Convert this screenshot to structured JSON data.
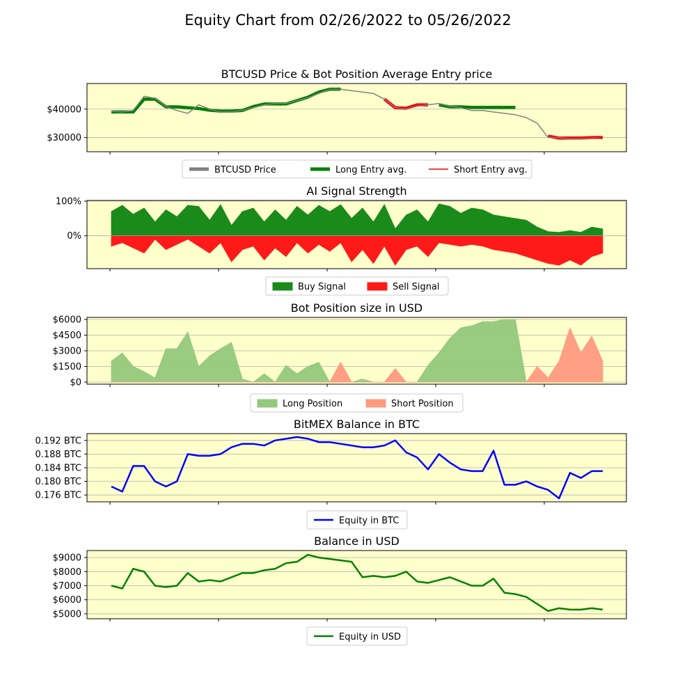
{
  "figure": {
    "title": "Equity Chart from 02/26/2022 to 05/26/2022"
  },
  "chart_data": [
    {
      "type": "line",
      "title": "BTCUSD Price & Bot Position Average Entry price",
      "ylim": [
        25000,
        49000
      ],
      "yticks": [
        30000,
        40000
      ],
      "ytick_labels": [
        "$30000",
        "$40000"
      ],
      "grid": "horizontal",
      "legend_placement": "bottom-center",
      "x": [
        0,
        2,
        4,
        6,
        8,
        10,
        12,
        14,
        16,
        18,
        20,
        22,
        24,
        26,
        28,
        30,
        32,
        34,
        36,
        38,
        40,
        42,
        44,
        46,
        48,
        50,
        52,
        54,
        56,
        58,
        60,
        62,
        64,
        66,
        68,
        70,
        72,
        74,
        76,
        78,
        80,
        82,
        84,
        86,
        88,
        90
      ],
      "series": [
        {
          "name": "BTCUSD Price",
          "color": "#808080",
          "values": [
            39200,
            39000,
            39500,
            44500,
            43800,
            41000,
            39500,
            38500,
            41500,
            40000,
            39000,
            39000,
            39500,
            40500,
            41500,
            42000,
            42000,
            43000,
            44000,
            45500,
            47000,
            47000,
            46500,
            46000,
            45500,
            43500,
            40500,
            40000,
            41000,
            41500,
            42000,
            41000,
            40500,
            39500,
            39500,
            39000,
            38500,
            38000,
            37000,
            35000,
            30000,
            30000,
            29500,
            29500,
            29800,
            29500
          ]
        },
        {
          "name": "Long Entry avg.",
          "color": "#008000",
          "values": [
            39000,
            39000,
            39000,
            43500,
            43500,
            40800,
            40800,
            40500,
            40200,
            39600,
            39300,
            39300,
            39500,
            40900,
            41800,
            41800,
            41800,
            43000,
            44200,
            46000,
            47000,
            47000,
            null,
            null,
            null,
            null,
            null,
            null,
            null,
            null,
            41500,
            40800,
            40800,
            40600,
            40600,
            40600,
            40600,
            40600,
            null,
            null,
            null,
            null,
            null,
            null,
            null,
            null
          ]
        },
        {
          "name": "Short Entry avg.",
          "color": "#ff0000",
          "values": [
            null,
            null,
            null,
            null,
            null,
            null,
            null,
            null,
            null,
            null,
            null,
            null,
            null,
            null,
            null,
            null,
            null,
            null,
            null,
            null,
            null,
            null,
            null,
            null,
            null,
            43500,
            40500,
            40300,
            41500,
            41500,
            null,
            null,
            null,
            null,
            null,
            null,
            null,
            null,
            null,
            null,
            30500,
            29800,
            29800,
            29800,
            30000,
            30000
          ]
        }
      ]
    },
    {
      "type": "area",
      "title": "AI Signal Strength",
      "ylim": [
        -95,
        102
      ],
      "yticks": [
        0,
        100
      ],
      "ytick_labels": [
        "0%",
        "100%"
      ],
      "grid": "horizontal",
      "legend_placement": "bottom-center",
      "x": [
        0,
        2,
        4,
        6,
        8,
        10,
        12,
        14,
        16,
        18,
        20,
        22,
        24,
        26,
        28,
        30,
        32,
        34,
        36,
        38,
        40,
        42,
        44,
        46,
        48,
        50,
        52,
        54,
        56,
        58,
        60,
        62,
        64,
        66,
        68,
        70,
        72,
        74,
        76,
        78,
        80,
        82,
        84,
        86,
        88,
        90
      ],
      "series": [
        {
          "name": "Buy Signal",
          "color": "#1a8a1a",
          "values": [
            70,
            88,
            62,
            80,
            40,
            75,
            55,
            88,
            85,
            45,
            90,
            30,
            70,
            80,
            40,
            75,
            45,
            85,
            60,
            88,
            70,
            90,
            50,
            80,
            40,
            90,
            20,
            60,
            75,
            40,
            92,
            85,
            65,
            80,
            75,
            60,
            55,
            50,
            45,
            25,
            12,
            10,
            15,
            10,
            25,
            20
          ]
        },
        {
          "name": "Sell Signal",
          "color": "#ff1a1a",
          "values": [
            -30,
            -20,
            -35,
            -50,
            -10,
            -40,
            -25,
            -10,
            -30,
            -50,
            -20,
            -75,
            -40,
            -30,
            -70,
            -35,
            -60,
            -20,
            -50,
            -25,
            -45,
            -20,
            -75,
            -40,
            -80,
            -30,
            -85,
            -40,
            -30,
            -60,
            -20,
            -25,
            -30,
            -25,
            -30,
            -40,
            -45,
            -50,
            -60,
            -70,
            -80,
            -85,
            -70,
            -85,
            -60,
            -50
          ]
        }
      ]
    },
    {
      "type": "area",
      "title": "Bot Position size in USD",
      "ylim": [
        -200,
        6200
      ],
      "yticks": [
        0,
        1500,
        3000,
        4500,
        6000
      ],
      "ytick_labels": [
        "$0",
        "$1500",
        "$3000",
        "$4500",
        "$6000"
      ],
      "grid": "horizontal",
      "legend_placement": "bottom-center",
      "x": [
        0,
        2,
        4,
        6,
        8,
        10,
        12,
        14,
        16,
        18,
        20,
        22,
        24,
        26,
        28,
        30,
        32,
        34,
        36,
        38,
        40,
        42,
        44,
        46,
        48,
        50,
        52,
        54,
        56,
        58,
        60,
        62,
        64,
        66,
        68,
        70,
        72,
        74,
        76,
        78,
        80,
        82,
        84,
        86,
        88,
        90
      ],
      "series": [
        {
          "name": "Long Position",
          "color": "#93c97c",
          "values": [
            2000,
            2800,
            1500,
            1000,
            400,
            3200,
            3200,
            4800,
            1500,
            2500,
            3200,
            3800,
            300,
            0,
            800,
            0,
            1600,
            800,
            1500,
            1900,
            0,
            0,
            0,
            300,
            0,
            0,
            0,
            0,
            0,
            1600,
            2800,
            4200,
            5200,
            5400,
            5800,
            5800,
            6000,
            6000,
            0,
            0,
            0,
            0,
            0,
            0,
            0,
            0
          ]
        },
        {
          "name": "Short Position",
          "color": "#ff9a80",
          "values": [
            0,
            0,
            0,
            0,
            0,
            0,
            0,
            0,
            0,
            0,
            0,
            0,
            0,
            0,
            0,
            0,
            0,
            0,
            0,
            0,
            0,
            1900,
            0,
            0,
            0,
            0,
            1300,
            0,
            0,
            0,
            0,
            0,
            0,
            0,
            0,
            0,
            0,
            0,
            0,
            1500,
            400,
            2000,
            5200,
            2800,
            4400,
            2000
          ]
        }
      ]
    },
    {
      "type": "line",
      "title": "BitMEX Balance in BTC",
      "ylim": [
        0.174,
        0.194
      ],
      "yticks": [
        0.176,
        0.18,
        0.184,
        0.188,
        0.192
      ],
      "ytick_labels": [
        "0.176 BTC",
        "0.180 BTC",
        "0.184 BTC",
        "0.188 BTC",
        "0.192 BTC"
      ],
      "grid": "horizontal",
      "legend_placement": "bottom-center",
      "x": [
        0,
        2,
        4,
        6,
        8,
        10,
        12,
        14,
        16,
        18,
        20,
        22,
        24,
        26,
        28,
        30,
        32,
        34,
        36,
        38,
        40,
        42,
        44,
        46,
        48,
        50,
        52,
        54,
        56,
        58,
        60,
        62,
        64,
        66,
        68,
        70,
        72,
        74,
        76,
        78,
        80,
        82,
        84,
        86,
        88,
        90
      ],
      "series": [
        {
          "name": "Equity in BTC",
          "color": "#0000ff",
          "values": [
            0.1785,
            0.177,
            0.1845,
            0.1845,
            0.18,
            0.1785,
            0.18,
            0.188,
            0.1875,
            0.1875,
            0.188,
            0.19,
            0.191,
            0.191,
            0.1905,
            0.192,
            0.1925,
            0.193,
            0.1925,
            0.1915,
            0.1915,
            0.191,
            0.1905,
            0.19,
            0.19,
            0.1905,
            0.192,
            0.1885,
            0.187,
            0.1835,
            0.188,
            0.1855,
            0.1835,
            0.183,
            0.183,
            0.189,
            0.179,
            0.179,
            0.18,
            0.1785,
            0.1775,
            0.175,
            0.1825,
            0.181,
            0.183,
            0.183
          ]
        }
      ]
    },
    {
      "type": "line",
      "title": "Balance in USD",
      "ylim": [
        4650,
        9500
      ],
      "yticks": [
        5000,
        6000,
        7000,
        8000,
        9000
      ],
      "ytick_labels": [
        "$5000",
        "$6000",
        "$7000",
        "$8000",
        "$9000"
      ],
      "grid": "horizontal",
      "legend_placement": "bottom-center",
      "x": [
        0,
        2,
        4,
        6,
        8,
        10,
        12,
        14,
        16,
        18,
        20,
        22,
        24,
        26,
        28,
        30,
        32,
        34,
        36,
        38,
        40,
        42,
        44,
        46,
        48,
        50,
        52,
        54,
        56,
        58,
        60,
        62,
        64,
        66,
        68,
        70,
        72,
        74,
        76,
        78,
        80,
        82,
        84,
        86,
        88,
        90
      ],
      "series": [
        {
          "name": "Equity in USD",
          "color": "#008000",
          "values": [
            7000,
            6800,
            8200,
            8000,
            7000,
            6900,
            7000,
            7900,
            7300,
            7400,
            7300,
            7600,
            7900,
            7900,
            8100,
            8200,
            8600,
            8700,
            9200,
            9000,
            8900,
            8800,
            8700,
            7600,
            7700,
            7600,
            7700,
            8000,
            7300,
            7200,
            7400,
            7600,
            7300,
            7000,
            7000,
            7500,
            6500,
            6400,
            6200,
            5700,
            5200,
            5400,
            5300,
            5300,
            5400,
            5300
          ]
        }
      ]
    }
  ]
}
